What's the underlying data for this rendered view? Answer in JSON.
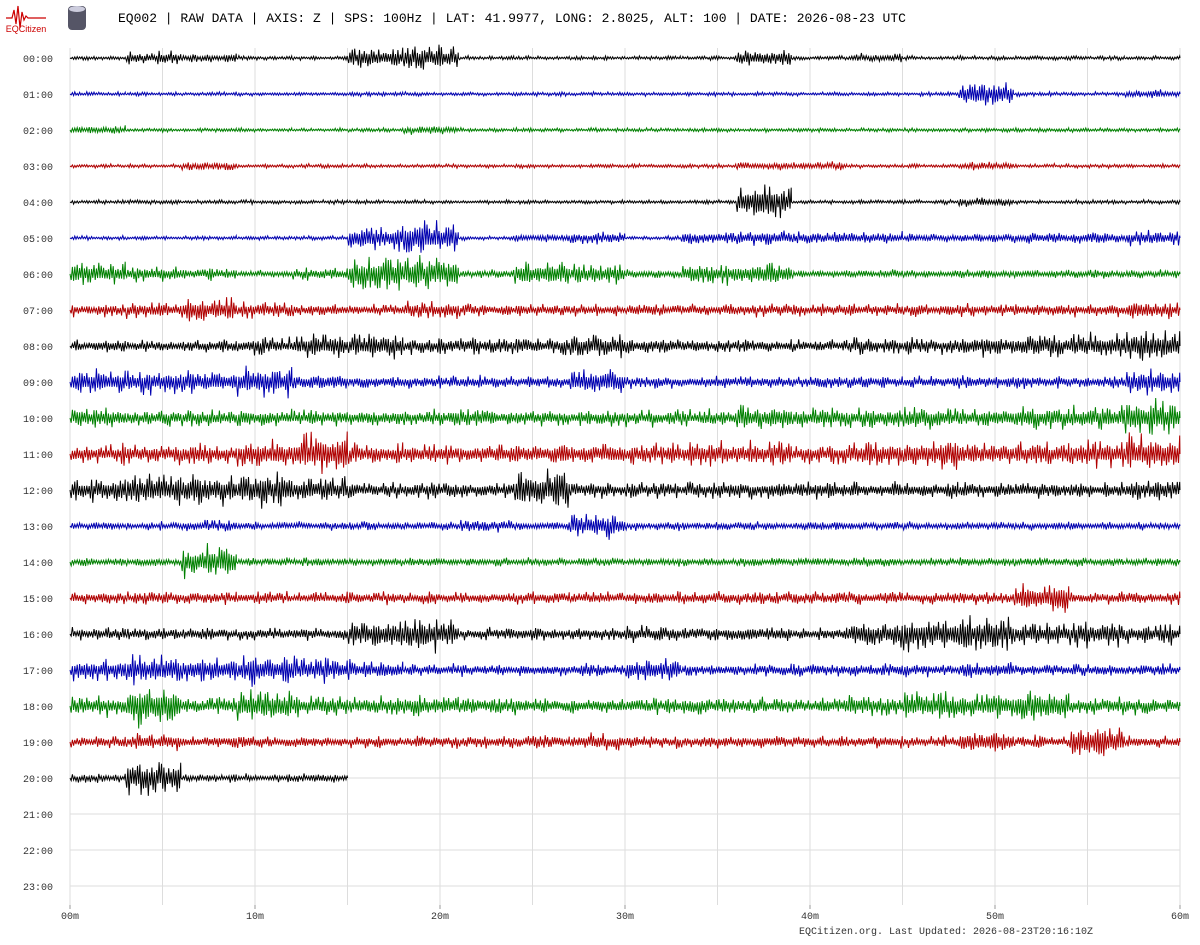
{
  "header": {
    "logo": "EQCitizen",
    "title": "EQ002 | RAW DATA | AXIS: Z | SPS: 100Hz | LAT: 41.9977, LONG: 2.8025, ALT: 100 | DATE: 2026-08-23 UTC"
  },
  "footer": "EQCitizen.org. Last Updated: 2026-08-23T20:16:10Z",
  "chart_data": {
    "type": "helicorder",
    "rows": [
      "00:00",
      "01:00",
      "02:00",
      "03:00",
      "04:00",
      "05:00",
      "06:00",
      "07:00",
      "08:00",
      "09:00",
      "10:00",
      "11:00",
      "12:00",
      "13:00",
      "14:00",
      "15:00",
      "16:00",
      "17:00",
      "18:00",
      "19:00",
      "20:00",
      "21:00",
      "22:00",
      "23:00"
    ],
    "xlim": [
      0,
      60
    ],
    "xgrid": [
      0,
      5,
      10,
      15,
      20,
      25,
      30,
      35,
      40,
      45,
      50,
      55,
      60
    ],
    "xticks": [
      {
        "value": 0,
        "label": "00m"
      },
      {
        "value": 10,
        "label": "10m"
      },
      {
        "value": 20,
        "label": "20m"
      },
      {
        "value": 30,
        "label": "30m"
      },
      {
        "value": 40,
        "label": "40m"
      },
      {
        "value": 50,
        "label": "50m"
      },
      {
        "value": 60,
        "label": "60m"
      }
    ],
    "bin_minutes": 3,
    "series": [
      {
        "color": "#000000",
        "values": [
          1,
          3,
          2,
          1,
          1,
          5,
          6,
          1,
          1,
          1,
          1,
          1,
          4,
          1,
          2,
          1,
          1,
          1,
          1,
          1
        ]
      },
      {
        "color": "#0000b0",
        "values": [
          1,
          1,
          1,
          1,
          1,
          1,
          1,
          1,
          1,
          1,
          1,
          1,
          1,
          1,
          1,
          1,
          6,
          1,
          1,
          2
        ]
      },
      {
        "color": "#008000",
        "values": [
          2,
          1,
          1,
          1,
          1,
          1,
          2,
          1,
          1,
          1,
          1,
          1,
          1,
          1,
          1,
          1,
          1,
          1,
          1,
          1
        ]
      },
      {
        "color": "#b00000",
        "values": [
          1,
          1,
          2,
          1,
          1,
          1,
          1,
          1,
          1,
          1,
          1,
          1,
          2,
          2,
          1,
          1,
          2,
          1,
          1,
          1
        ]
      },
      {
        "color": "#000000",
        "values": [
          1,
          1,
          1,
          1,
          1,
          1,
          1,
          1,
          1,
          1,
          1,
          1,
          8,
          1,
          1,
          1,
          2,
          1,
          1,
          1
        ]
      },
      {
        "color": "#0000b0",
        "values": [
          1,
          1,
          1,
          1,
          1,
          6,
          8,
          1,
          2,
          3,
          1,
          3,
          4,
          3,
          3,
          2,
          2,
          3,
          3,
          4
        ]
      },
      {
        "color": "#008000",
        "values": [
          6,
          4,
          3,
          2,
          3,
          8,
          8,
          2,
          6,
          5,
          2,
          5,
          6,
          2,
          2,
          2,
          2,
          2,
          2,
          2
        ]
      },
      {
        "color": "#b00000",
        "values": [
          3,
          4,
          6,
          4,
          3,
          3,
          4,
          3,
          3,
          3,
          3,
          3,
          3,
          3,
          3,
          3,
          3,
          3,
          3,
          4
        ]
      },
      {
        "color": "#000000",
        "values": [
          3,
          3,
          3,
          4,
          6,
          6,
          4,
          4,
          4,
          6,
          4,
          3,
          3,
          3,
          4,
          4,
          5,
          5,
          6,
          8
        ]
      },
      {
        "color": "#0000b0",
        "values": [
          7,
          6,
          6,
          7,
          4,
          3,
          3,
          3,
          3,
          7,
          3,
          3,
          3,
          3,
          3,
          3,
          3,
          3,
          3,
          6
        ]
      },
      {
        "color": "#008000",
        "values": [
          5,
          4,
          4,
          4,
          4,
          4,
          4,
          4,
          4,
          4,
          4,
          4,
          6,
          5,
          5,
          5,
          5,
          6,
          6,
          9
        ]
      },
      {
        "color": "#b00000",
        "values": [
          5,
          5,
          5,
          7,
          10,
          5,
          5,
          5,
          5,
          5,
          5,
          6,
          6,
          5,
          6,
          8,
          6,
          6,
          7,
          9
        ]
      },
      {
        "color": "#000000",
        "values": [
          6,
          8,
          8,
          8,
          6,
          4,
          4,
          4,
          9,
          4,
          4,
          4,
          4,
          4,
          4,
          4,
          4,
          4,
          4,
          5
        ]
      },
      {
        "color": "#0000b0",
        "values": [
          2,
          2,
          3,
          2,
          2,
          2,
          2,
          3,
          2,
          6,
          2,
          2,
          2,
          2,
          2,
          2,
          2,
          2,
          2,
          2
        ]
      },
      {
        "color": "#008000",
        "values": [
          2,
          2,
          8,
          2,
          2,
          2,
          2,
          2,
          2,
          2,
          2,
          2,
          2,
          2,
          2,
          2,
          2,
          2,
          2,
          2
        ]
      },
      {
        "color": "#b00000",
        "values": [
          3,
          3,
          3,
          3,
          3,
          3,
          3,
          3,
          3,
          3,
          3,
          3,
          3,
          3,
          3,
          3,
          3,
          8,
          3,
          3
        ]
      },
      {
        "color": "#000000",
        "values": [
          3,
          3,
          3,
          3,
          3,
          7,
          8,
          3,
          3,
          3,
          4,
          3,
          4,
          3,
          6,
          9,
          8,
          6,
          6,
          5
        ]
      },
      {
        "color": "#0000b0",
        "values": [
          6,
          7,
          7,
          7,
          6,
          5,
          3,
          3,
          3,
          3,
          6,
          3,
          3,
          3,
          3,
          3,
          4,
          3,
          3,
          3
        ]
      },
      {
        "color": "#008000",
        "values": [
          5,
          10,
          4,
          8,
          5,
          5,
          5,
          4,
          4,
          4,
          4,
          4,
          4,
          4,
          5,
          7,
          6,
          8,
          4,
          4
        ]
      },
      {
        "color": "#b00000",
        "values": [
          3,
          4,
          3,
          3,
          3,
          3,
          3,
          3,
          3,
          4,
          3,
          3,
          3,
          3,
          3,
          3,
          6,
          3,
          8,
          3
        ]
      },
      {
        "color": "#000000",
        "values": [
          2,
          8,
          2,
          2,
          2
        ]
      }
    ]
  }
}
